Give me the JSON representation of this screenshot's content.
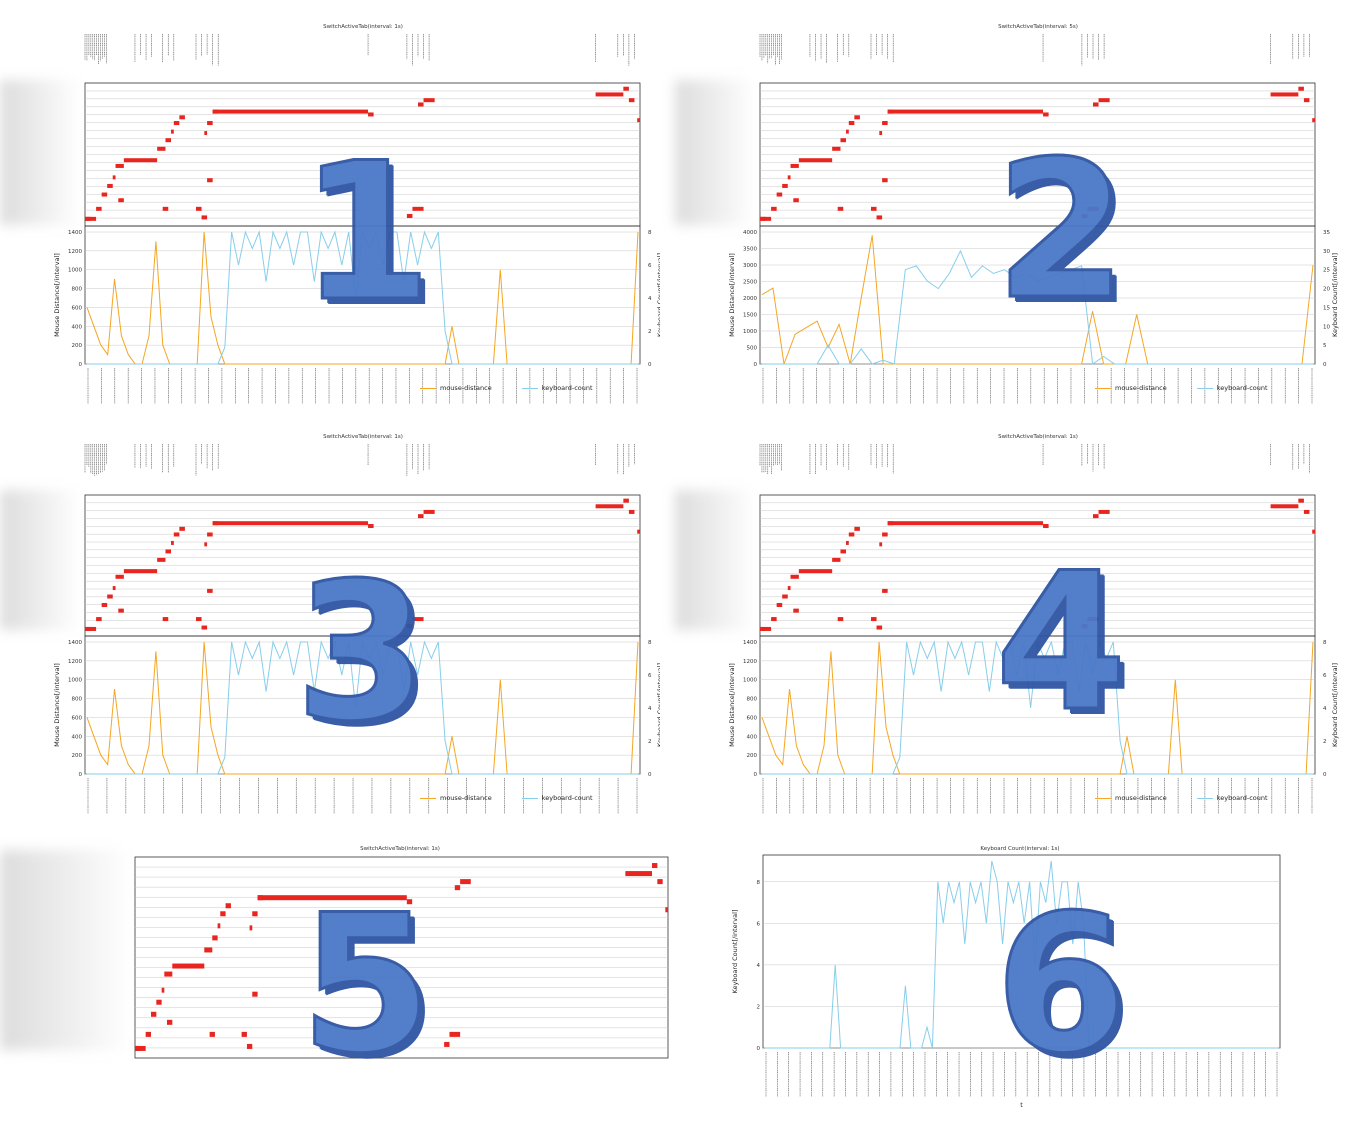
{
  "panels": [
    {
      "id": 1,
      "title": "SwitchActiveTab(interval: 1s)",
      "y_left_label": "Mouse Distance[/interval]",
      "y_right_label": "Keyboard Count[/interval]",
      "left_ticks": [
        "0",
        "200",
        "400",
        "600",
        "800",
        "1000",
        "1200",
        "1400"
      ],
      "right_ticks": [
        "0",
        "2",
        "4",
        "6",
        "8"
      ],
      "legend": [
        "mouse-distance",
        "keyboard-count"
      ],
      "overlay": "1"
    },
    {
      "id": 2,
      "title": "SwitchActiveTab(interval: 5s)",
      "y_left_label": "Mouse Distance[/interval]",
      "y_right_label": "Keyboard Count[/interval]",
      "left_ticks": [
        "0",
        "500",
        "1000",
        "1500",
        "2000",
        "2500",
        "3000",
        "3500",
        "4000"
      ],
      "right_ticks": [
        "0",
        "5",
        "10",
        "15",
        "20",
        "25",
        "30",
        "35"
      ],
      "legend": [
        "mouse-distance",
        "keyboard-count"
      ],
      "overlay": "2"
    },
    {
      "id": 3,
      "title": "SwitchActiveTab(interval: 1s)",
      "y_left_label": "Mouse Distance[/interval]",
      "y_right_label": "Keyboard Count[/interval]",
      "left_ticks": [
        "0",
        "200",
        "400",
        "600",
        "800",
        "1000",
        "1200",
        "1400"
      ],
      "right_ticks": [
        "0",
        "2",
        "4",
        "6",
        "8"
      ],
      "legend": [
        "mouse-distance",
        "keyboard-count"
      ],
      "overlay": "3"
    },
    {
      "id": 4,
      "title": "SwitchActiveTab(interval: 1s)",
      "y_left_label": "Mouse Distance[/interval]",
      "y_right_label": "Keyboard Count[/interval]",
      "left_ticks": [
        "0",
        "200",
        "400",
        "600",
        "800",
        "1000",
        "1200",
        "1400"
      ],
      "right_ticks": [
        "0",
        "2",
        "4",
        "6",
        "8"
      ],
      "legend": [
        "mouse-distance",
        "keyboard-count"
      ],
      "overlay": "4"
    },
    {
      "id": 5,
      "title": "SwitchActiveTab(interval: 1s)",
      "overlay": "5"
    },
    {
      "id": 6,
      "title": "Keyboard Count(interval: 1s)",
      "y_left_label": "Keyboard Count[/interval]",
      "x_label": "t",
      "left_ticks": [
        "0",
        "2",
        "4",
        "6",
        "8"
      ],
      "overlay": "6"
    }
  ],
  "colors": {
    "mouse": "#f5a623",
    "keyboard": "#87ceeb",
    "segment": "#e8251f",
    "overlay": "#4a78c8",
    "grid": "#c8c8c8"
  },
  "chart_data": [
    {
      "type": "line",
      "title": "SwitchActiveTab(interval: 1s)",
      "ylabel": "Mouse Distance[/interval]",
      "y2label": "Keyboard Count[/interval]",
      "ylim": [
        0,
        1400
      ],
      "y2lim": [
        0,
        8
      ],
      "series": [
        {
          "name": "mouse-distance",
          "values": [
            600,
            400,
            200,
            100,
            900,
            300,
            100,
            0,
            0,
            300,
            1300,
            200,
            0,
            0,
            0,
            0,
            0,
            1400,
            500,
            200,
            0,
            0,
            0,
            0,
            0,
            0,
            0,
            0,
            0,
            0,
            0,
            0,
            0,
            0,
            0,
            0,
            0,
            0,
            0,
            0,
            0,
            0,
            0,
            0,
            0,
            0,
            0,
            0,
            0,
            0,
            0,
            0,
            0,
            400,
            0,
            0,
            0,
            0,
            0,
            0,
            1000,
            0,
            0,
            0,
            0,
            0,
            0,
            0,
            0,
            0,
            0,
            0,
            0,
            0,
            0,
            0,
            0,
            0,
            0,
            0,
            1400
          ]
        },
        {
          "name": "keyboard-count",
          "values": [
            0,
            0,
            0,
            0,
            0,
            0,
            0,
            0,
            0,
            0,
            0,
            0,
            0,
            0,
            0,
            0,
            0,
            0,
            0,
            0,
            1,
            8,
            6,
            8,
            7,
            8,
            5,
            8,
            7,
            8,
            6,
            8,
            8,
            5,
            8,
            7,
            8,
            6,
            8,
            4,
            8,
            7,
            8,
            6,
            8,
            8,
            5,
            8,
            6,
            8,
            7,
            8,
            2,
            0,
            0,
            0,
            0,
            0,
            0,
            0,
            0,
            0,
            0,
            0,
            0,
            0,
            0,
            0,
            0,
            0,
            0,
            0,
            0,
            0,
            0,
            0,
            0,
            0,
            0,
            0,
            0
          ]
        }
      ]
    },
    {
      "type": "line",
      "title": "SwitchActiveTab(interval: 5s)",
      "ylabel": "Mouse Distance[/interval]",
      "y2label": "Keyboard Count[/interval]",
      "ylim": [
        0,
        4000
      ],
      "y2lim": [
        0,
        35
      ],
      "series": [
        {
          "name": "mouse-distance",
          "values": [
            2100,
            2300,
            0,
            900,
            1100,
            1300,
            500,
            1200,
            0,
            2000,
            3900,
            0,
            0,
            0,
            0,
            0,
            0,
            0,
            0,
            0,
            0,
            0,
            0,
            0,
            0,
            0,
            0,
            0,
            0,
            0,
            1600,
            0,
            0,
            0,
            1500,
            0,
            0,
            0,
            0,
            0,
            0,
            0,
            0,
            0,
            0,
            0,
            0,
            0,
            0,
            0,
            3000
          ]
        },
        {
          "name": "keyboard-count",
          "values": [
            0,
            0,
            0,
            0,
            0,
            0,
            5,
            0,
            0,
            4,
            0,
            1,
            0,
            25,
            26,
            22,
            20,
            24,
            30,
            23,
            26,
            24,
            25,
            23,
            24,
            22,
            23,
            24,
            25,
            26,
            0,
            2,
            0,
            0,
            0,
            0,
            0,
            0,
            0,
            0,
            0,
            0,
            0,
            0,
            0,
            0,
            0,
            0,
            0,
            0,
            0
          ]
        }
      ]
    },
    {
      "type": "line",
      "title": "SwitchActiveTab(interval: 1s)",
      "ylabel": "Mouse Distance[/interval]",
      "y2label": "Keyboard Count[/interval]",
      "ylim": [
        0,
        1400
      ],
      "y2lim": [
        0,
        8
      ],
      "series": [
        {
          "name": "mouse-distance",
          "values": [
            600,
            400,
            200,
            100,
            900,
            300,
            100,
            0,
            0,
            300,
            1300,
            200,
            0,
            0,
            0,
            0,
            0,
            1400,
            500,
            200,
            0,
            0,
            0,
            0,
            0,
            0,
            0,
            0,
            0,
            0,
            0,
            0,
            0,
            0,
            0,
            0,
            0,
            0,
            0,
            0,
            0,
            0,
            0,
            0,
            0,
            0,
            0,
            0,
            0,
            0,
            0,
            0,
            0,
            400,
            0,
            0,
            0,
            0,
            0,
            0,
            1000,
            0,
            0,
            0,
            0,
            0,
            0,
            0,
            0,
            0,
            0,
            0,
            0,
            0,
            0,
            0,
            0,
            0,
            0,
            0,
            1400
          ]
        },
        {
          "name": "keyboard-count",
          "values": [
            0,
            0,
            0,
            0,
            0,
            0,
            0,
            0,
            0,
            0,
            0,
            0,
            0,
            0,
            0,
            0,
            0,
            0,
            0,
            0,
            1,
            8,
            6,
            8,
            7,
            8,
            5,
            8,
            7,
            8,
            6,
            8,
            8,
            5,
            8,
            7,
            8,
            6,
            8,
            4,
            8,
            7,
            8,
            6,
            8,
            8,
            5,
            8,
            6,
            8,
            7,
            8,
            2,
            0,
            0,
            0,
            0,
            0,
            0,
            0,
            0,
            0,
            0,
            0,
            0,
            0,
            0,
            0,
            0,
            0,
            0,
            0,
            0,
            0,
            0,
            0,
            0,
            0,
            0,
            0,
            0
          ]
        }
      ]
    },
    {
      "type": "line",
      "title": "SwitchActiveTab(interval: 1s)",
      "ylabel": "Mouse Distance[/interval]",
      "y2label": "Keyboard Count[/interval]",
      "ylim": [
        0,
        1400
      ],
      "y2lim": [
        0,
        8
      ],
      "series": [
        {
          "name": "mouse-distance",
          "values": [
            600,
            400,
            200,
            100,
            900,
            300,
            100,
            0,
            0,
            300,
            1300,
            200,
            0,
            0,
            0,
            0,
            0,
            1400,
            500,
            200,
            0,
            0,
            0,
            0,
            0,
            0,
            0,
            0,
            0,
            0,
            0,
            0,
            0,
            0,
            0,
            0,
            0,
            0,
            0,
            0,
            0,
            0,
            0,
            0,
            0,
            0,
            0,
            0,
            0,
            0,
            0,
            0,
            0,
            400,
            0,
            0,
            0,
            0,
            0,
            0,
            1000,
            0,
            0,
            0,
            0,
            0,
            0,
            0,
            0,
            0,
            0,
            0,
            0,
            0,
            0,
            0,
            0,
            0,
            0,
            0,
            1400
          ]
        },
        {
          "name": "keyboard-count",
          "values": [
            0,
            0,
            0,
            0,
            0,
            0,
            0,
            0,
            0,
            0,
            0,
            0,
            0,
            0,
            0,
            0,
            0,
            0,
            0,
            0,
            1,
            8,
            6,
            8,
            7,
            8,
            5,
            8,
            7,
            8,
            6,
            8,
            8,
            5,
            8,
            7,
            8,
            6,
            8,
            4,
            8,
            7,
            8,
            6,
            8,
            8,
            5,
            8,
            6,
            8,
            7,
            8,
            2,
            0,
            0,
            0,
            0,
            0,
            0,
            0,
            0,
            0,
            0,
            0,
            0,
            0,
            0,
            0,
            0,
            0,
            0,
            0,
            0,
            0,
            0,
            0,
            0,
            0,
            0,
            0,
            0
          ]
        }
      ]
    },
    {
      "type": "other",
      "title": "SwitchActiveTab(interval: 1s)"
    },
    {
      "type": "line",
      "title": "Keyboard Count(interval: 1s)",
      "ylabel": "Keyboard Count[/interval]",
      "xlabel": "t",
      "ylim": [
        0,
        9
      ],
      "series": [
        {
          "values": [
            0,
            0,
            0,
            0,
            0,
            0,
            0,
            0,
            0,
            0,
            0,
            0,
            0,
            4,
            0,
            0,
            0,
            0,
            0,
            0,
            0,
            0,
            0,
            0,
            0,
            0,
            3,
            0,
            0,
            0,
            1,
            0,
            8,
            6,
            8,
            7,
            8,
            5,
            8,
            7,
            8,
            6,
            9,
            8,
            5,
            8,
            7,
            8,
            6,
            8,
            4,
            8,
            7,
            9,
            6,
            8,
            8,
            5,
            8,
            6,
            0,
            0,
            0,
            0,
            0,
            0,
            0,
            0,
            0,
            0,
            0,
            0,
            0,
            0,
            0,
            0,
            0,
            0,
            0,
            0,
            0,
            0,
            0,
            0,
            0,
            0,
            0,
            0,
            0,
            0,
            0,
            0,
            0,
            0,
            0,
            0
          ]
        }
      ]
    }
  ]
}
